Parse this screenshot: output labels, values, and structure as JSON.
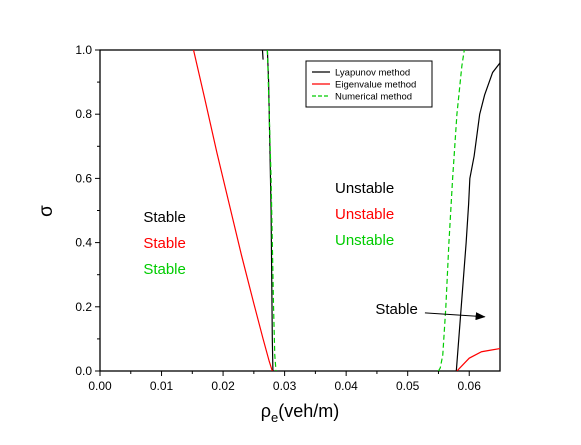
{
  "chart_data": {
    "type": "line",
    "xlabel": "ρe(veh/m)",
    "xlabel_parts": {
      "symbol": "ρ",
      "subscript": "e",
      "suffix": "(veh/m)"
    },
    "ylabel": "σ",
    "xlim": [
      0.0,
      0.065
    ],
    "ylim": [
      0.0,
      1.0
    ],
    "x_ticks": [
      0.0,
      0.01,
      0.02,
      0.03,
      0.04,
      0.05,
      0.06
    ],
    "x_tick_labels": [
      "0.00",
      "0.01",
      "0.02",
      "0.03",
      "0.04",
      "0.05",
      "0.06"
    ],
    "y_ticks": [
      0.0,
      0.2,
      0.4,
      0.6,
      0.8,
      1.0
    ],
    "y_tick_labels": [
      "0.0",
      "0.2",
      "0.4",
      "0.6",
      "0.8",
      "1.0"
    ],
    "grid": false,
    "legend_position": "top-right",
    "series": [
      {
        "name": "Lyapunov method",
        "color": "#000000",
        "style": "solid",
        "segments": [
          [
            [
              0.0272,
              1.0
            ],
            [
              0.0274,
              0.9
            ],
            [
              0.0276,
              0.7
            ],
            [
              0.0278,
              0.5
            ],
            [
              0.0279,
              0.3
            ],
            [
              0.028,
              0.1
            ],
            [
              0.0281,
              0.0
            ]
          ],
          [
            [
              0.0579,
              0.0
            ],
            [
              0.0583,
              0.1
            ],
            [
              0.0587,
              0.2
            ],
            [
              0.0591,
              0.3
            ],
            [
              0.0595,
              0.4
            ],
            [
              0.0599,
              0.52
            ],
            [
              0.0601,
              0.6
            ],
            [
              0.0608,
              0.67
            ],
            [
              0.0617,
              0.8
            ],
            [
              0.0625,
              0.86
            ],
            [
              0.0638,
              0.93
            ],
            [
              0.065,
              0.96
            ]
          ]
        ]
      },
      {
        "name": "Eigenvalue method",
        "color": "#ff0000",
        "style": "solid",
        "segments": [
          [
            [
              0.0152,
              1.0
            ],
            [
              0.017,
              0.85
            ],
            [
              0.019,
              0.68
            ],
            [
              0.021,
              0.52
            ],
            [
              0.023,
              0.36
            ],
            [
              0.025,
              0.21
            ],
            [
              0.0265,
              0.1
            ],
            [
              0.0275,
              0.03
            ],
            [
              0.028,
              0.0
            ]
          ],
          [
            [
              0.058,
              0.0
            ],
            [
              0.059,
              0.02
            ],
            [
              0.06,
              0.04
            ],
            [
              0.061,
              0.05
            ],
            [
              0.062,
              0.06
            ],
            [
              0.0635,
              0.065
            ],
            [
              0.065,
              0.07
            ]
          ]
        ]
      },
      {
        "name": "Numerical method",
        "color": "#00cc00",
        "style": "dashed",
        "segments": [
          [
            [
              0.0272,
              1.0
            ],
            [
              0.0275,
              0.8
            ],
            [
              0.0278,
              0.6
            ],
            [
              0.028,
              0.4
            ],
            [
              0.0282,
              0.2
            ],
            [
              0.0284,
              0.05
            ],
            [
              0.0286,
              0.0
            ]
          ],
          [
            [
              0.055,
              0.0
            ],
            [
              0.0553,
              0.01
            ],
            [
              0.0557,
              0.05
            ],
            [
              0.0562,
              0.2
            ],
            [
              0.0567,
              0.4
            ],
            [
              0.0573,
              0.6
            ],
            [
              0.058,
              0.8
            ],
            [
              0.0588,
              0.95
            ],
            [
              0.0592,
              1.0
            ]
          ]
        ]
      },
      {
        "name": "",
        "color": "#000000",
        "style": "solid",
        "segments": [
          [
            [
              0.0264,
              1.0
            ],
            [
              0.0265,
              0.97
            ]
          ]
        ]
      }
    ],
    "annotations": [
      {
        "text": "Stable",
        "color": "#000000",
        "x": 0.0105,
        "y": 0.464
      },
      {
        "text": "Stable",
        "color": "#ff0000",
        "x": 0.0105,
        "y": 0.383
      },
      {
        "text": "Stable",
        "color": "#00cc00",
        "x": 0.0105,
        "y": 0.302
      },
      {
        "text": "Unstable",
        "color": "#000000",
        "x": 0.043,
        "y": 0.554
      },
      {
        "text": "Unstable",
        "color": "#ff0000",
        "x": 0.043,
        "y": 0.473
      },
      {
        "text": "Unstable",
        "color": "#00cc00",
        "x": 0.043,
        "y": 0.392
      },
      {
        "text": "Stable",
        "color": "#000000",
        "x": 0.0482,
        "y": 0.178
      }
    ],
    "arrow": {
      "from": [
        0.0528,
        0.181
      ],
      "to": [
        0.0625,
        0.169
      ],
      "color": "#000000"
    }
  }
}
